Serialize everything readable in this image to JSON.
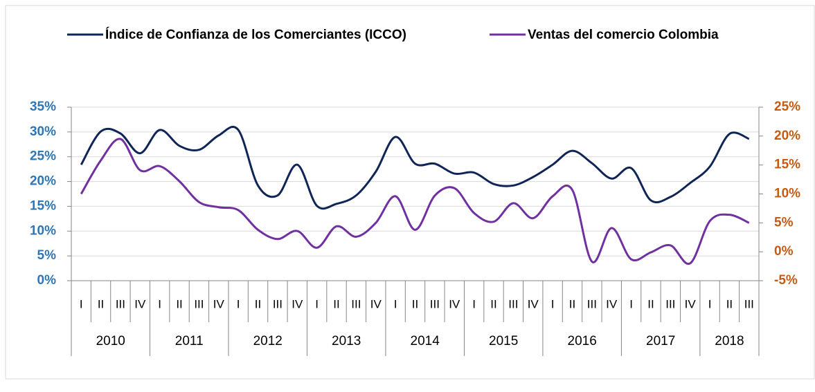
{
  "chart_data": {
    "type": "line",
    "category_groups": [
      {
        "label": "2010",
        "categories": [
          "I",
          "II",
          "III",
          "IV"
        ]
      },
      {
        "label": "2011",
        "categories": [
          "I",
          "II",
          "III",
          "IV"
        ]
      },
      {
        "label": "2012",
        "categories": [
          "I",
          "II",
          "III",
          "IV"
        ]
      },
      {
        "label": "2013",
        "categories": [
          "I",
          "II",
          "III",
          "IV"
        ]
      },
      {
        "label": "2014",
        "categories": [
          "I",
          "II",
          "III",
          "IV"
        ]
      },
      {
        "label": "2015",
        "categories": [
          "I",
          "II",
          "III",
          "IV"
        ]
      },
      {
        "label": "2016",
        "categories": [
          "I",
          "II",
          "III",
          "IV"
        ]
      },
      {
        "label": "2017",
        "categories": [
          "I",
          "II",
          "III",
          "IV"
        ]
      },
      {
        "label": "2018",
        "categories": [
          "I",
          "II",
          "III"
        ]
      }
    ],
    "series": [
      {
        "name": "Índice de Confianza de los Comerciantes (ICCO)",
        "color": "#0f2557",
        "values": [
          23.4,
          30.1,
          29.7,
          25.7,
          30.4,
          27.2,
          26.4,
          29.3,
          30.4,
          19.2,
          17.2,
          23.4,
          15.1,
          15.5,
          17.2,
          22.0,
          29.0,
          23.6,
          23.6,
          21.6,
          21.8,
          19.5,
          19.2,
          20.9,
          23.4,
          26.2,
          23.7,
          20.6,
          22.7,
          16.2,
          16.9,
          19.7,
          23.0,
          29.6,
          28.6
        ]
      },
      {
        "name": "Ventas del comercio Colombia",
        "color": "#7030a0",
        "axis": "y2",
        "values": [
          10.0,
          15.8,
          19.5,
          14.1,
          14.8,
          12.2,
          8.6,
          7.7,
          7.2,
          3.8,
          2.2,
          3.6,
          0.7,
          4.4,
          2.6,
          5.0,
          9.6,
          3.8,
          9.7,
          11.0,
          6.7,
          5.2,
          8.4,
          5.8,
          9.6,
          10.7,
          -1.7,
          4.1,
          -1.3,
          -0.1,
          1.1,
          -2.0,
          5.3,
          6.4,
          5.0
        ]
      }
    ],
    "ylim": [
      0,
      35
    ],
    "yticks": [
      {
        "value": 0,
        "label": "0%"
      },
      {
        "value": 5,
        "label": "5%"
      },
      {
        "value": 10,
        "label": "10%"
      },
      {
        "value": 15,
        "label": "15%"
      },
      {
        "value": 20,
        "label": "20%"
      },
      {
        "value": 25,
        "label": "25%"
      },
      {
        "value": 30,
        "label": "30%"
      },
      {
        "value": 35,
        "label": "35%"
      }
    ],
    "y2lim": [
      -5,
      25
    ],
    "y2ticks": [
      {
        "value": -5,
        "label": "-5%"
      },
      {
        "value": 0,
        "label": "0%"
      },
      {
        "value": 5,
        "label": "5%"
      },
      {
        "value": 10,
        "label": "10%"
      },
      {
        "value": 15,
        "label": "15%"
      },
      {
        "value": 20,
        "label": "20%"
      },
      {
        "value": 25,
        "label": "25%"
      }
    ],
    "grid": true,
    "legend": "top"
  }
}
